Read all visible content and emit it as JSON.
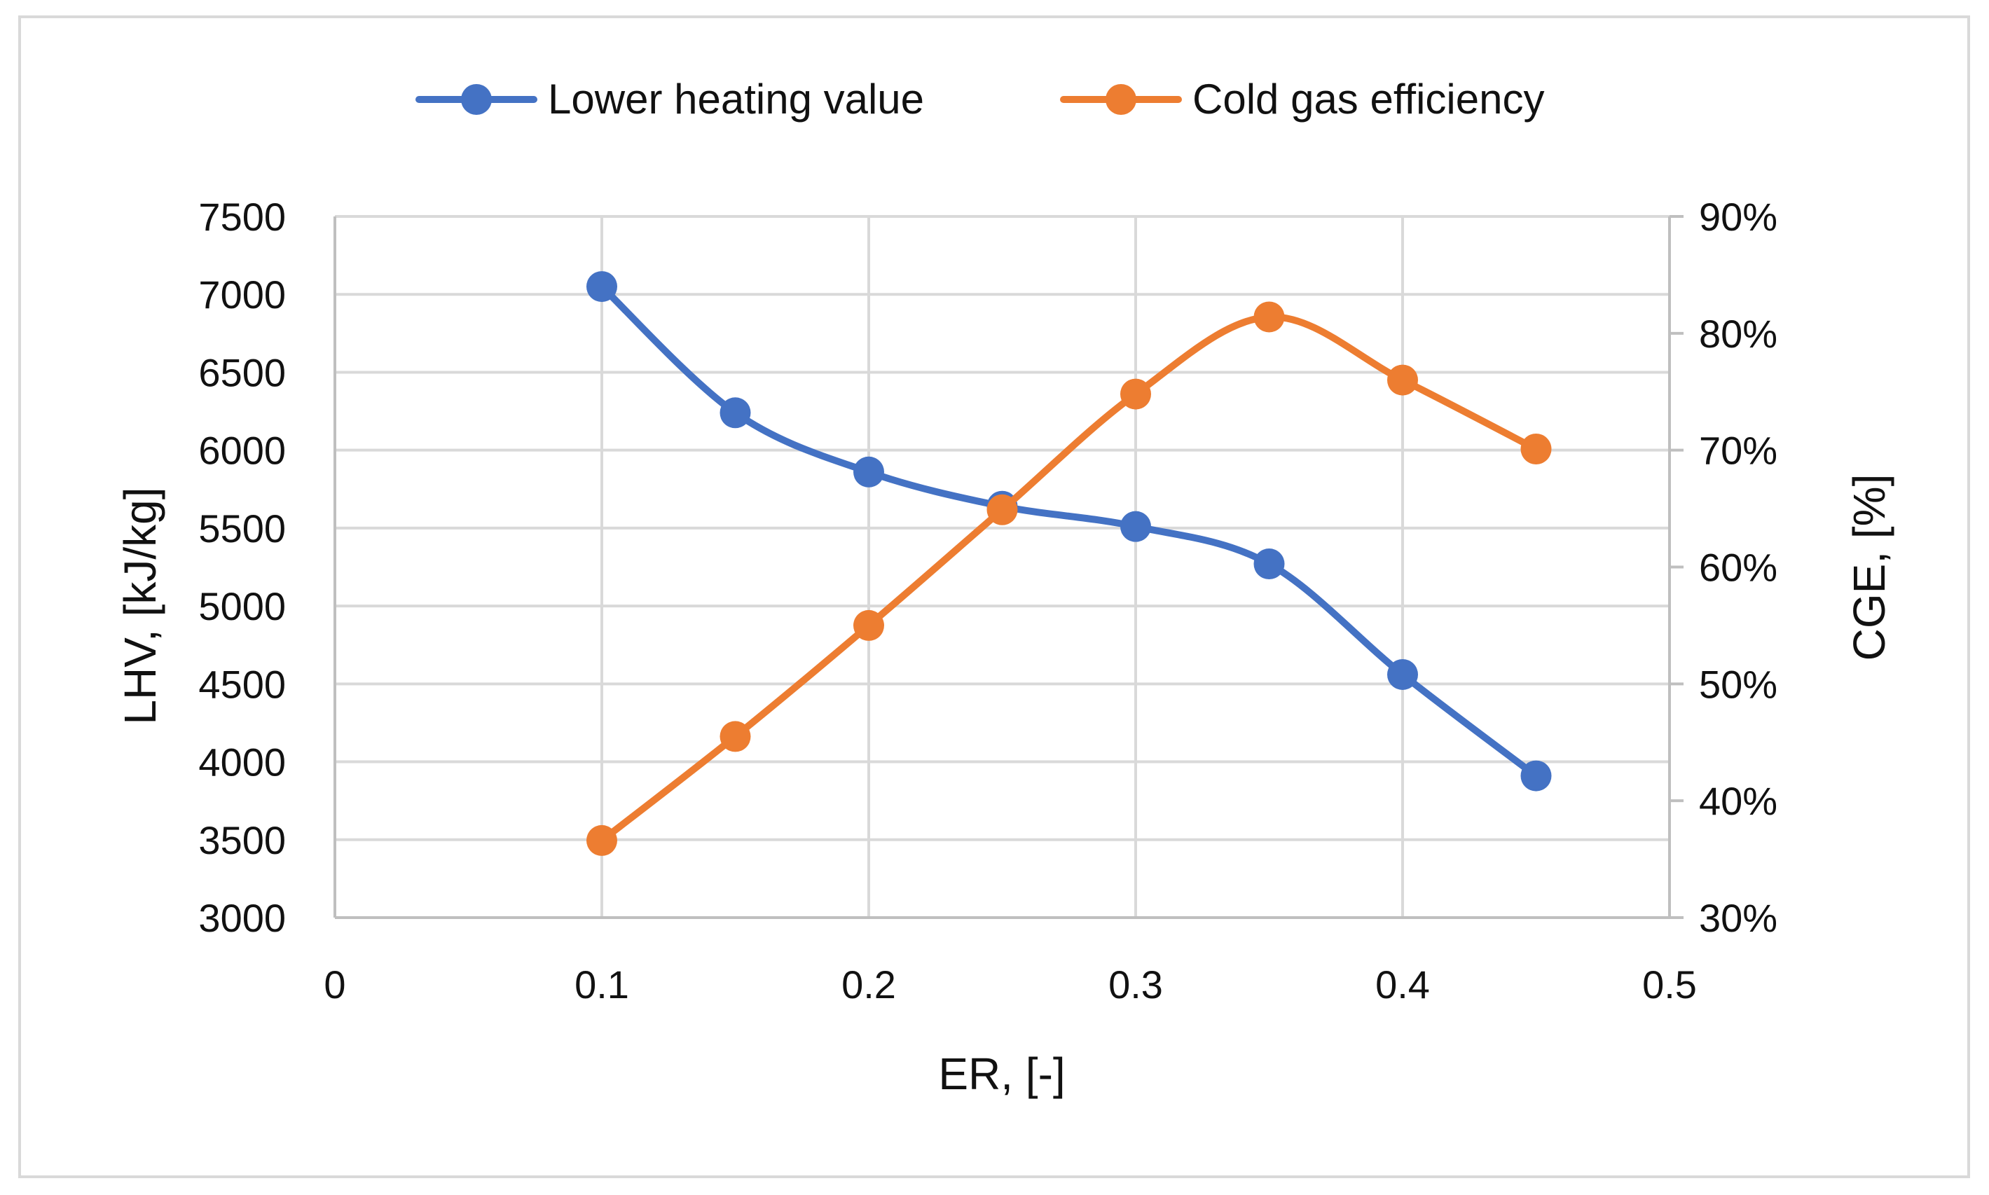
{
  "chart_data": {
    "type": "line",
    "title": "",
    "xlabel": "ER, [-]",
    "ylabel": "LHV, [kJ/kg]",
    "y2label": "CGE, [%]",
    "xlim": [
      0,
      0.5
    ],
    "ylim": [
      3000,
      7500
    ],
    "y2lim": [
      30,
      90
    ],
    "x_ticks": [
      "0",
      "0.1",
      "0.2",
      "0.3",
      "0.4",
      "0.5"
    ],
    "y_ticks": [
      "3000",
      "3500",
      "4000",
      "4500",
      "5000",
      "5500",
      "6000",
      "6500",
      "7000",
      "7500"
    ],
    "y2_ticks": [
      "30%",
      "40%",
      "50%",
      "60%",
      "70%",
      "80%",
      "90%"
    ],
    "grid": true,
    "legend_position": "top",
    "smooth": true,
    "x": [
      0.1,
      0.15,
      0.2,
      0.25,
      0.3,
      0.35,
      0.4,
      0.45
    ],
    "series": [
      {
        "name": "Lower heating value",
        "axis": "left",
        "color": "#4472C4",
        "values": [
          7050,
          6240,
          5860,
          5640,
          5510,
          5270,
          4560,
          3910
        ]
      },
      {
        "name": "Cold gas efficiency",
        "axis": "right",
        "color": "#ED7D31",
        "values": [
          36.6,
          45.5,
          55.0,
          64.9,
          74.8,
          81.4,
          76.0,
          70.1
        ]
      }
    ]
  }
}
